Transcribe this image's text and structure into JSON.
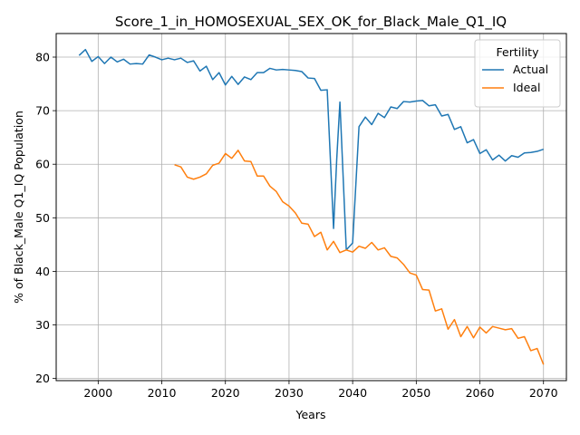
{
  "chart_data": {
    "type": "line",
    "title": "Score_1_in_HOMOSEXUAL_SEX_OK_for_Black_Male_Q1_IQ",
    "xlabel": "Years",
    "ylabel": "% of Black_Male Q1_IQ Population",
    "xlim": [
      1993.4,
      2073.6
    ],
    "ylim": [
      19.6,
      84.4
    ],
    "xticks": [
      2000,
      2010,
      2020,
      2030,
      2040,
      2050,
      2060,
      2070
    ],
    "yticks": [
      20,
      30,
      40,
      50,
      60,
      70,
      80
    ],
    "grid": true,
    "legend": {
      "title": "Fertility",
      "placement": "top-right"
    },
    "series": [
      {
        "name": "Actual",
        "color": "#1f77b4",
        "x": [
          1997,
          1998,
          1999,
          2000,
          2001,
          2002,
          2003,
          2004,
          2005,
          2006,
          2007,
          2008,
          2009,
          2010,
          2011,
          2012,
          2013,
          2014,
          2015,
          2016,
          2017,
          2018,
          2019,
          2020,
          2021,
          2022,
          2023,
          2024,
          2025,
          2026,
          2027,
          2028,
          2029,
          2030,
          2031,
          2032,
          2033,
          2034,
          2035,
          2036,
          2037,
          2037.5,
          2038,
          2039,
          2040,
          2041,
          2042,
          2043,
          2044,
          2045,
          2046,
          2047,
          2048,
          2049,
          2050,
          2051,
          2052,
          2053,
          2054,
          2055,
          2056,
          2057,
          2058,
          2059,
          2060,
          2061,
          2062,
          2063,
          2064,
          2065,
          2066,
          2067,
          2068,
          2069,
          2070
        ],
        "values": [
          80.3,
          81.4,
          79.2,
          80.1,
          78.8,
          80.0,
          79.1,
          79.6,
          78.7,
          78.8,
          78.7,
          80.4,
          80.0,
          79.5,
          79.8,
          79.5,
          79.8,
          79.0,
          79.3,
          77.4,
          78.3,
          75.8,
          77.1,
          74.8,
          76.4,
          74.9,
          76.3,
          75.8,
          77.1,
          77.1,
          77.9,
          77.6,
          77.7,
          77.6,
          77.5,
          77.3,
          76.1,
          76.0,
          73.8,
          73.9,
          48.0,
          61.0,
          71.6,
          44.0,
          45.3,
          67.0,
          68.8,
          67.4,
          69.5,
          68.7,
          70.7,
          70.4,
          71.7,
          71.6,
          71.8,
          71.9,
          70.9,
          71.1,
          69.0,
          69.3,
          66.5,
          67.0,
          64.0,
          64.6,
          62.0,
          62.7,
          60.8,
          61.7,
          60.6,
          61.6,
          61.3,
          62.1,
          62.2,
          62.4,
          62.8
        ]
      },
      {
        "name": "Ideal",
        "color": "#ff7f0e",
        "x": [
          2012,
          2013,
          2014,
          2015,
          2016,
          2017,
          2018,
          2019,
          2020,
          2021,
          2022,
          2023,
          2024,
          2025,
          2026,
          2027,
          2028,
          2029,
          2030,
          2031,
          2032,
          2033,
          2034,
          2035,
          2036,
          2037,
          2038,
          2039,
          2040,
          2041,
          2042,
          2043,
          2044,
          2045,
          2046,
          2047,
          2048,
          2049,
          2050,
          2051,
          2052,
          2053,
          2054,
          2055,
          2056,
          2057,
          2058,
          2059,
          2060,
          2061,
          2062,
          2063,
          2064,
          2065,
          2066,
          2067,
          2068,
          2069,
          2070
        ],
        "values": [
          59.9,
          59.5,
          57.6,
          57.2,
          57.6,
          58.2,
          59.8,
          60.2,
          62.0,
          61.1,
          62.6,
          60.6,
          60.5,
          57.8,
          57.8,
          55.9,
          54.9,
          53.0,
          52.2,
          50.9,
          49.0,
          48.8,
          46.5,
          47.3,
          44.0,
          45.6,
          43.5,
          44.0,
          43.6,
          44.7,
          44.3,
          45.4,
          44.0,
          44.4,
          42.8,
          42.5,
          41.3,
          39.7,
          39.3,
          36.6,
          36.5,
          32.6,
          33.0,
          29.2,
          31.0,
          27.8,
          29.7,
          27.6,
          29.6,
          28.5,
          29.7,
          29.4,
          29.1,
          29.3,
          27.5,
          27.8,
          25.2,
          25.6,
          22.6
        ]
      }
    ]
  }
}
